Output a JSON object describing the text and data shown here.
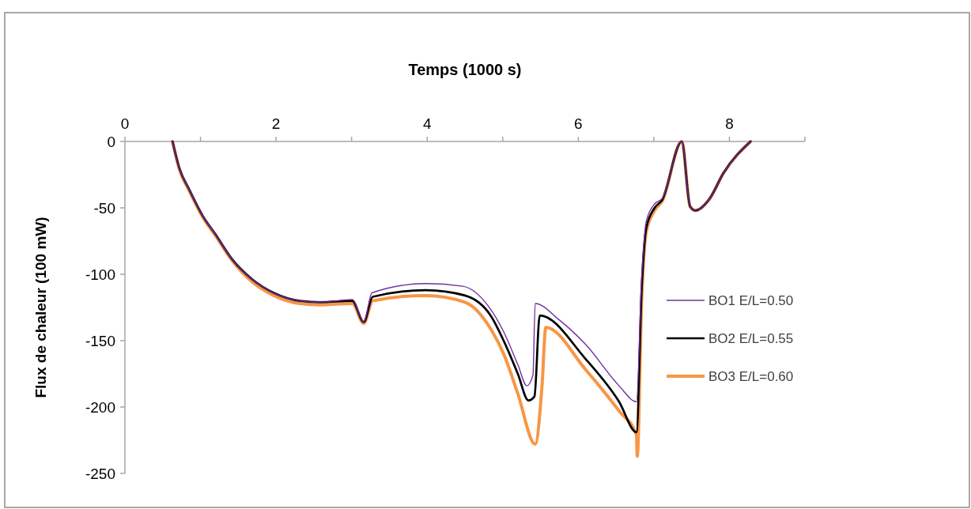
{
  "chart_data": {
    "type": "line",
    "xlabel": "Temps  (1000 s)",
    "ylabel": "Flux de chaleur  (100 mW)",
    "xlim": [
      0,
      9
    ],
    "xticks": [
      0,
      {
        "value": 1,
        "label": null
      },
      2,
      {
        "value": 3,
        "label": null
      },
      4,
      {
        "value": 5,
        "label": null
      },
      6,
      {
        "value": 7,
        "label": null
      },
      8,
      {
        "value": 9,
        "label": null
      }
    ],
    "ylim": [
      -250,
      0
    ],
    "yticks": [
      0,
      -50,
      -100,
      -150,
      -200,
      -250
    ],
    "grid": false,
    "legend": "right",
    "line_style": "solid",
    "series": [
      {
        "name": "BO1 E/L=0.50",
        "color": "#7030a0",
        "x": [
          0.63,
          0.72,
          0.85,
          1.03,
          1.2,
          1.41,
          1.69,
          1.97,
          2.31,
          2.59,
          3.01,
          3.16,
          3.27,
          3.98,
          4.47,
          4.81,
          5.01,
          5.2,
          5.32,
          5.4,
          5.43,
          5.74,
          6.1,
          6.54,
          6.77,
          6.84,
          6.9,
          7.01,
          7.11,
          7.37,
          7.48,
          7.55,
          7.74,
          7.92,
          8.28
        ],
        "values": [
          0,
          -20,
          -36,
          -56,
          -70,
          -88,
          -104,
          -114,
          -120,
          -121,
          -119,
          -136,
          -114,
          -107,
          -109,
          -124,
          -143,
          -168,
          -184,
          -176,
          -122,
          -134,
          -153,
          -184,
          -196,
          -101,
          -60,
          -47,
          -43,
          0,
          -49,
          -52,
          -43,
          -24,
          0
        ]
      },
      {
        "name": "BO2 E/L=0.55",
        "color": "#000000",
        "x": [
          0.63,
          0.72,
          0.85,
          1.03,
          1.2,
          1.41,
          1.69,
          1.97,
          2.31,
          2.59,
          3.01,
          3.16,
          3.28,
          3.98,
          4.5,
          4.85,
          5.02,
          5.2,
          5.34,
          5.42,
          5.49,
          6.1,
          6.54,
          6.77,
          6.84,
          6.9,
          7.01,
          7.11,
          7.37,
          7.48,
          7.55,
          7.74,
          7.92,
          8.28
        ],
        "values": [
          0,
          -20,
          -36,
          -56,
          -70,
          -88,
          -104,
          -114,
          -120,
          -121,
          -120,
          -136,
          -117,
          -112,
          -116,
          -132,
          -151,
          -175,
          -195,
          -192,
          -131,
          -164,
          -196,
          -219,
          -110,
          -65,
          -50,
          -44,
          0,
          -49,
          -52,
          -43,
          -24,
          0
        ]
      },
      {
        "name": "BO3 E/L=0.60",
        "color": "#f79646",
        "x": [
          0.63,
          0.72,
          0.85,
          1.03,
          1.2,
          1.41,
          1.69,
          1.97,
          2.31,
          2.59,
          3.01,
          3.16,
          3.28,
          3.98,
          4.5,
          4.85,
          5.02,
          5.2,
          5.43,
          5.52,
          5.57,
          6.1,
          6.54,
          6.77,
          6.78,
          6.84,
          6.9,
          7.01,
          7.11,
          7.37,
          7.48,
          7.55,
          7.74,
          7.92,
          8.28
        ],
        "values": [
          0,
          -21,
          -37,
          -57,
          -71,
          -89,
          -106,
          -116,
          -122,
          -123,
          -122,
          -137,
          -120,
          -116,
          -121,
          -142,
          -161,
          -190,
          -228,
          -184,
          -140,
          -172,
          -203,
          -221,
          -237,
          -118,
          -68,
          -52,
          -45,
          0,
          -49,
          -52,
          -43,
          -24,
          0
        ]
      }
    ]
  }
}
